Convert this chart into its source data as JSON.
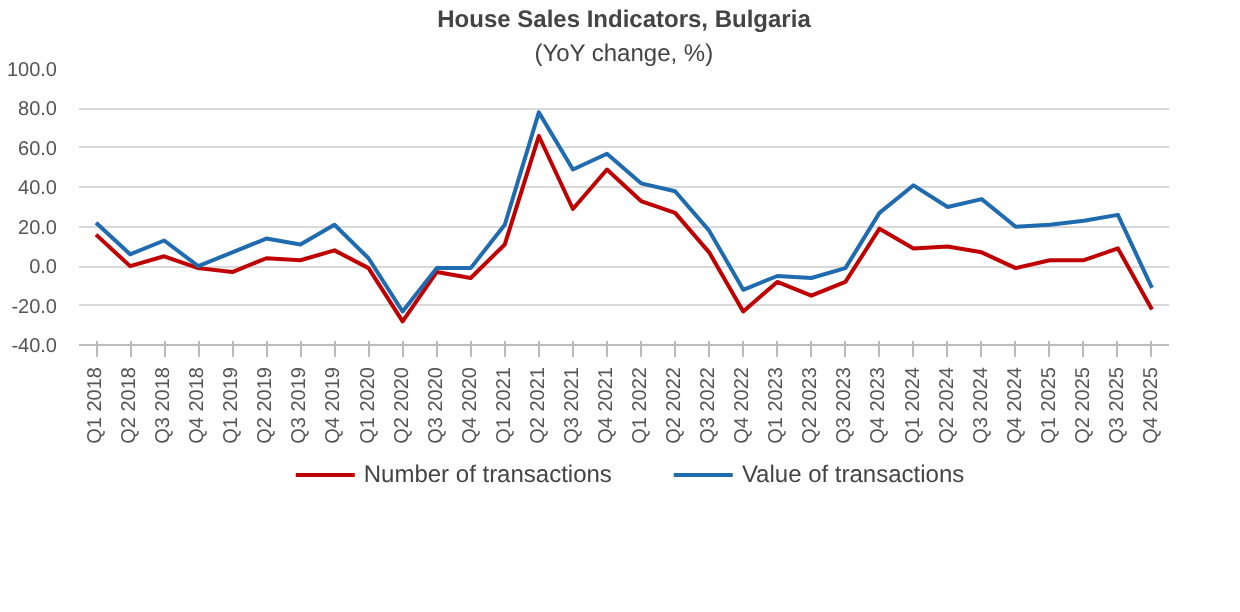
{
  "chart_data": {
    "type": "line",
    "title": "House Sales Indicators, Bulgaria",
    "subtitle": "(YoY change, %)",
    "categories": [
      "Q1 2018",
      "Q2 2018",
      "Q3 2018",
      "Q4 2018",
      "Q1 2019",
      "Q2 2019",
      "Q3 2019",
      "Q4 2019",
      "Q1 2020",
      "Q2 2020",
      "Q3 2020",
      "Q4 2020",
      "Q1 2021",
      "Q2 2021",
      "Q3 2021",
      "Q4 2021",
      "Q1 2022",
      "Q2 2022",
      "Q3 2022",
      "Q4 2022",
      "Q1 2023",
      "Q2 2023",
      "Q3 2023",
      "Q4 2023",
      "Q1 2024",
      "Q2 2024",
      "Q3 2024",
      "Q4 2024",
      "Q1 2025",
      "Q2 2025",
      "Q3 2025",
      "Q4 2025"
    ],
    "series": [
      {
        "name": "Number of transactions",
        "color": "#c00000",
        "values": [
          16,
          0,
          5,
          -1,
          -3,
          4,
          3,
          8,
          -1,
          -28,
          -3,
          -6,
          11,
          66,
          29,
          49,
          33,
          27,
          7,
          -23,
          -8,
          -15,
          -8,
          19,
          9,
          10,
          7,
          -1,
          3,
          3,
          9,
          -22
        ]
      },
      {
        "name": "Value of transactions",
        "color": "#1f6bb0",
        "values": [
          22,
          6,
          13,
          0,
          7,
          14,
          11,
          21,
          4,
          -23,
          -1,
          -1,
          21,
          78,
          49,
          57,
          42,
          38,
          18,
          -12,
          -5,
          -6,
          -1,
          27,
          41,
          30,
          34,
          20,
          21,
          23,
          26,
          -11
        ]
      }
    ],
    "ylim": [
      -40,
      100
    ],
    "yticks": [
      {
        "value": -40,
        "label": "-40.0"
      },
      {
        "value": -20,
        "label": "-20.0"
      },
      {
        "value": 0,
        "label": "0.0"
      },
      {
        "value": 20,
        "label": "20.0"
      },
      {
        "value": 40,
        "label": "40.0"
      },
      {
        "value": 60,
        "label": "60.0"
      },
      {
        "value": 80,
        "label": "80.0"
      },
      {
        "value": 100,
        "label": "100.0"
      }
    ],
    "grid": "y",
    "legend": "bottom"
  }
}
